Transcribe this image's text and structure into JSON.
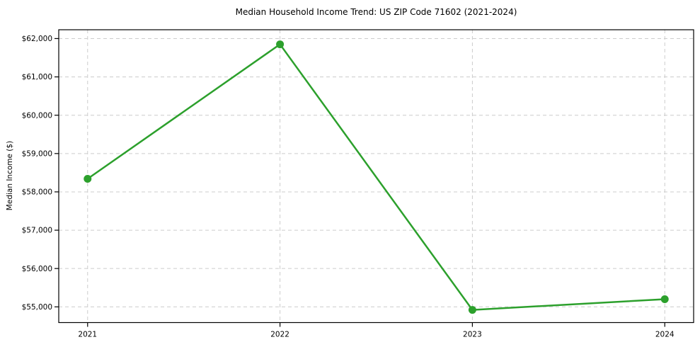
{
  "chart_data": {
    "type": "line",
    "title": "Median Household Income Trend: US ZIP Code 71602 (2021-2024)",
    "xlabel": "",
    "ylabel": "Median Income ($)",
    "categories": [
      "2021",
      "2022",
      "2023",
      "2024"
    ],
    "x": [
      2021,
      2022,
      2023,
      2024
    ],
    "series": [
      {
        "name": "median-household-income",
        "values": [
          58340,
          61850,
          54920,
          55200
        ],
        "color": "#2ca02c",
        "marker": "circle"
      }
    ],
    "y_ticks": {
      "values": [
        55000,
        56000,
        57000,
        58000,
        59000,
        60000,
        61000,
        62000
      ],
      "labels": [
        "$55,000",
        "$56,000",
        "$57,000",
        "$58,000",
        "$59,000",
        "$60,000",
        "$61,000",
        "$62,000"
      ]
    },
    "x_tick_labels": [
      "2021",
      "2022",
      "2023",
      "2024"
    ],
    "ylim": [
      54590,
      62230
    ],
    "xlim": [
      2020.85,
      2024.15
    ],
    "grid": "dashed-both-axes",
    "legend": "none",
    "colors": {
      "line": "#2ca02c",
      "grid": "#cccccc",
      "spine": "#000000",
      "background": "#ffffff",
      "text": "#000000"
    }
  }
}
